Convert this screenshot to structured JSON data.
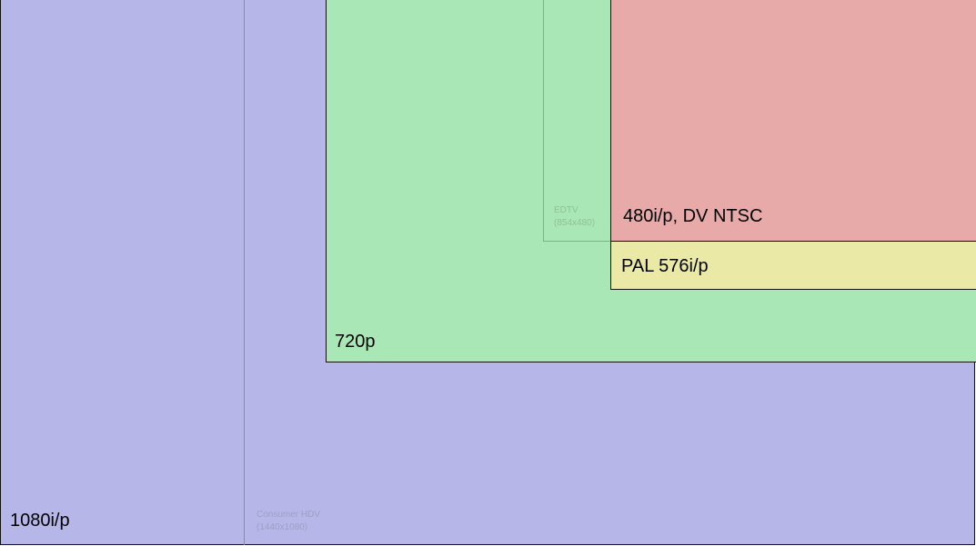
{
  "regions": {
    "r1080": {
      "label": "1080i/p",
      "color": "#b6b6e9"
    },
    "consumer_hdv": {
      "label": "Consumer HDV",
      "sublabel": "(1440x1080)",
      "color": "#9f9fc4"
    },
    "r720": {
      "label": "720p",
      "color": "#aae7b6"
    },
    "edtv": {
      "label": "EDTV",
      "sublabel": "(854x480)",
      "color": "#8fbf9a"
    },
    "pal": {
      "label": "PAL 576i/p",
      "color": "#eaeaa6"
    },
    "ntsc": {
      "label": "480i/p, DV NTSC",
      "color": "#e8a9a9"
    }
  }
}
